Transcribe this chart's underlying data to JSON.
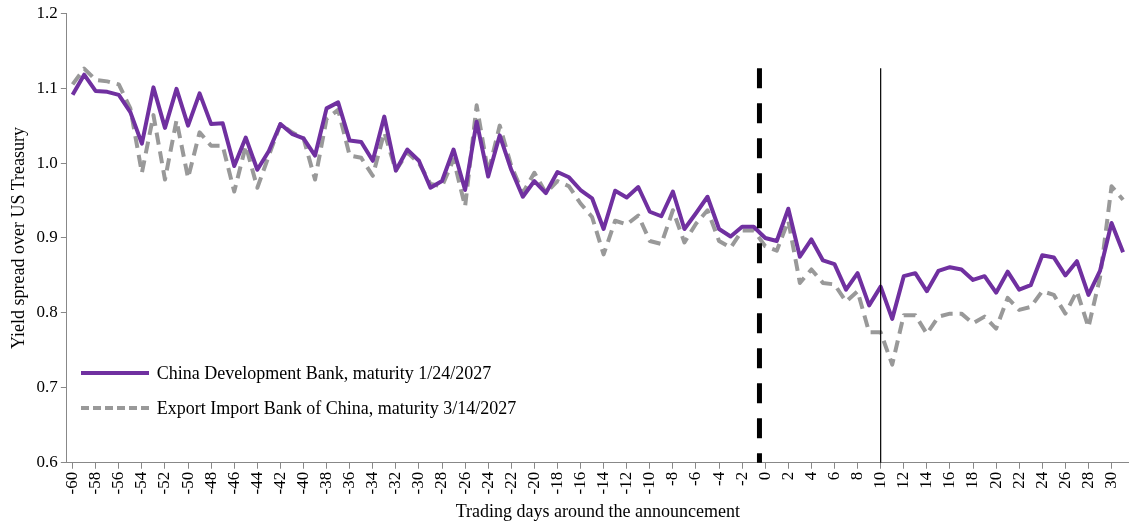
{
  "chart_data": {
    "type": "line",
    "xlabel": "Trading days around the announcement",
    "ylabel": "Yield spread over US Treasury",
    "x": [
      -60,
      -59,
      -58,
      -57,
      -56,
      -55,
      -54,
      -53,
      -52,
      -51,
      -50,
      -49,
      -48,
      -47,
      -46,
      -45,
      -44,
      -43,
      -42,
      -41,
      -40,
      -39,
      -38,
      -37,
      -36,
      -35,
      -34,
      -33,
      -32,
      -31,
      -30,
      -29,
      -28,
      -27,
      -26,
      -25,
      -24,
      -23,
      -22,
      -21,
      -20,
      -19,
      -18,
      -17,
      -16,
      -15,
      -14,
      -13,
      -12,
      -11,
      -10,
      -9,
      -8,
      -7,
      -6,
      -5,
      -4,
      -3,
      -2,
      -1,
      0,
      1,
      2,
      3,
      4,
      5,
      6,
      7,
      8,
      9,
      10,
      11,
      12,
      13,
      14,
      15,
      16,
      17,
      18,
      19,
      20,
      21,
      22,
      23,
      24,
      25,
      26,
      27,
      28,
      29,
      30,
      31
    ],
    "series": [
      {
        "name": "China Development Bank, maturity 1/24/2027",
        "color": "#7030a0",
        "line_style": "solid",
        "values": [
          1.091,
          1.118,
          1.096,
          1.095,
          1.091,
          1.068,
          1.026,
          1.101,
          1.047,
          1.099,
          1.05,
          1.093,
          1.052,
          1.053,
          0.996,
          1.034,
          0.991,
          1.016,
          1.052,
          1.039,
          1.033,
          1.01,
          1.073,
          1.081,
          1.03,
          1.028,
          1.003,
          1.062,
          0.99,
          1.018,
          1.003,
          0.967,
          0.976,
          1.018,
          0.964,
          1.055,
          0.982,
          1.037,
          0.991,
          0.955,
          0.976,
          0.96,
          0.988,
          0.981,
          0.964,
          0.953,
          0.912,
          0.963,
          0.954,
          0.968,
          0.935,
          0.929,
          0.962,
          0.912,
          0.933,
          0.955,
          0.912,
          0.902,
          0.915,
          0.915,
          0.9,
          0.896,
          0.939,
          0.875,
          0.898,
          0.87,
          0.865,
          0.831,
          0.853,
          0.81,
          0.835,
          0.792,
          0.849,
          0.853,
          0.829,
          0.856,
          0.861,
          0.858,
          0.844,
          0.849,
          0.827,
          0.855,
          0.831,
          0.837,
          0.877,
          0.874,
          0.85,
          0.869,
          0.824,
          0.856,
          0.92,
          0.881
        ]
      },
      {
        "name": "Export Import Bank of China, maturity 3/14/2027",
        "color": "#999999",
        "line_style": "dashed",
        "values": [
          1.105,
          1.126,
          1.111,
          1.109,
          1.105,
          1.073,
          0.987,
          1.064,
          0.978,
          1.057,
          0.98,
          1.041,
          1.023,
          1.023,
          0.962,
          1.023,
          0.967,
          1.01,
          1.052,
          1.041,
          1.033,
          0.978,
          1.059,
          1.071,
          1.01,
          1.007,
          0.983,
          1.041,
          0.99,
          1.014,
          1.0,
          0.972,
          0.969,
          1.005,
          0.942,
          1.077,
          0.987,
          1.05,
          0.996,
          0.96,
          0.987,
          0.96,
          0.976,
          0.969,
          0.946,
          0.928,
          0.878,
          0.923,
          0.918,
          0.93,
          0.896,
          0.892,
          0.937,
          0.894,
          0.919,
          0.937,
          0.896,
          0.887,
          0.91,
          0.91,
          0.889,
          0.883,
          0.923,
          0.84,
          0.858,
          0.84,
          0.838,
          0.815,
          0.829,
          0.774,
          0.774,
          0.731,
          0.797,
          0.797,
          0.772,
          0.795,
          0.799,
          0.799,
          0.786,
          0.795,
          0.779,
          0.82,
          0.804,
          0.808,
          0.829,
          0.824,
          0.799,
          0.829,
          0.781,
          0.847,
          0.969,
          0.951
        ]
      }
    ],
    "xlim": [
      -60.5,
      31.5
    ],
    "xticks": [
      -60,
      -58,
      -56,
      -54,
      -52,
      -50,
      -48,
      -46,
      -44,
      -42,
      -40,
      -38,
      -36,
      -34,
      -32,
      -30,
      -28,
      -26,
      -24,
      -22,
      -20,
      -18,
      -16,
      -14,
      -12,
      -10,
      -8,
      -6,
      -4,
      -2,
      0,
      2,
      4,
      6,
      8,
      10,
      12,
      14,
      16,
      18,
      20,
      22,
      24,
      26,
      28,
      30
    ],
    "ylim": [
      0.6,
      1.2
    ],
    "yticks": [
      0.6,
      0.7,
      0.8,
      0.9,
      {
        "value": 1,
        "label": "1.0"
      },
      1.1,
      1.2
    ],
    "ref_lines": [
      {
        "axis": "x",
        "value": -0.5,
        "color": "#000000",
        "line_style": "dashed"
      },
      {
        "axis": "x",
        "value": 10,
        "color": "#000000",
        "line_style": "solid"
      }
    ],
    "grid": false,
    "legend": "bottom left",
    "marker": "none"
  }
}
